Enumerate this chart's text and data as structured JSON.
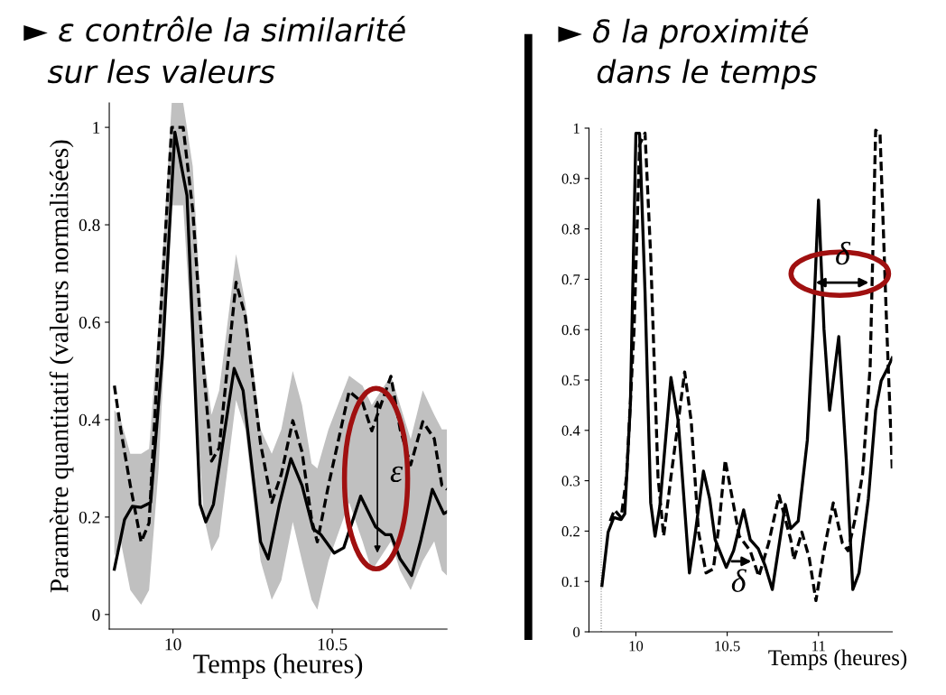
{
  "chart_data": [
    {
      "type": "line",
      "title": "► ε contrôle la similarité\nsur les valeurs",
      "xlabel": "Temps (heures)",
      "ylabel": "Paramètre quantitatif (valeurs normalisées)",
      "xlim": [
        9.8,
        10.86
      ],
      "ylim": [
        -0.03,
        1.05
      ],
      "xticks": [
        10,
        10.5
      ],
      "yticks": [
        0,
        0.2,
        0.4,
        0.6,
        0.8,
        1
      ],
      "series": [
        {
          "color": "#000000",
          "line_style": "solid",
          "x": [
            9.816,
            9.848,
            9.872,
            9.9,
            9.93,
            9.967,
            10.006,
            10.044,
            10.085,
            10.103,
            10.127,
            10.192,
            10.22,
            10.275,
            10.299,
            10.334,
            10.37,
            10.405,
            10.44,
            10.464,
            10.506,
            10.536,
            10.589,
            10.636,
            10.666,
            10.684,
            10.713,
            10.749,
            10.778,
            10.814,
            10.85,
            10.86
          ],
          "values": [
            0.093,
            0.195,
            0.222,
            0.22,
            0.23,
            0.535,
            0.99,
            0.86,
            0.226,
            0.19,
            0.226,
            0.505,
            0.46,
            0.149,
            0.114,
            0.226,
            0.32,
            0.265,
            0.176,
            0.164,
            0.126,
            0.137,
            0.243,
            0.18,
            0.164,
            0.164,
            0.114,
            0.08,
            0.153,
            0.257,
            0.207,
            0.211
          ]
        },
        {
          "color": "#000000",
          "line_style": "dashed",
          "x": [
            9.816,
            9.836,
            9.866,
            9.9,
            9.925,
            9.955,
            9.996,
            10.032,
            10.062,
            10.097,
            10.121,
            10.145,
            10.198,
            10.227,
            10.275,
            10.31,
            10.34,
            10.376,
            10.405,
            10.435,
            10.453,
            10.488,
            10.553,
            10.595,
            10.624,
            10.684,
            10.713,
            10.746,
            10.784,
            10.82,
            10.844,
            10.86
          ],
          "values": [
            0.47,
            0.38,
            0.265,
            0.149,
            0.188,
            0.55,
            1.0,
            1.0,
            0.83,
            0.497,
            0.315,
            0.342,
            0.682,
            0.612,
            0.35,
            0.23,
            0.288,
            0.398,
            0.334,
            0.195,
            0.149,
            0.265,
            0.458,
            0.435,
            0.377,
            0.489,
            0.38,
            0.307,
            0.396,
            0.361,
            0.265,
            0.257
          ],
          "lower": [
            0.12,
            0.15,
            0.05,
            0.02,
            0.05,
            0.3,
            0.84,
            0.84,
            0.53,
            0.2,
            0.13,
            0.16,
            0.44,
            0.38,
            0.11,
            0.03,
            0.07,
            0.19,
            0.11,
            0.03,
            0.01,
            0.11,
            0.23,
            0.15,
            0.09,
            0.15,
            0.09,
            0.05,
            0.11,
            0.15,
            0.09,
            0.08
          ],
          "upper": [
            0.42,
            0.4,
            0.33,
            0.33,
            0.34,
            0.6,
            1.05,
            1.05,
            0.92,
            0.53,
            0.41,
            0.46,
            0.74,
            0.64,
            0.38,
            0.33,
            0.38,
            0.5,
            0.43,
            0.31,
            0.3,
            0.38,
            0.49,
            0.47,
            0.43,
            0.49,
            0.43,
            0.36,
            0.46,
            0.41,
            0.38,
            0.38
          ]
        }
      ],
      "annotations": [
        "ε"
      ]
    },
    {
      "type": "line",
      "title": "► δ la proximité\ndans le temps",
      "xlabel": "Temps (heures)",
      "xlim": [
        9.743,
        11.404
      ],
      "ylim": [
        0,
        1
      ],
      "xticks": [
        10,
        10.5,
        11
      ],
      "yticks": [
        0,
        0.1,
        0.2,
        0.3,
        0.4,
        0.5,
        0.6,
        0.7,
        0.8,
        0.9,
        1
      ],
      "ref_lines": [
        {
          "axis": "x",
          "value": 9.81,
          "line_style": "dotted",
          "color": "#808080"
        }
      ],
      "series": [
        {
          "color": "#000000",
          "line_style": "solid",
          "x": [
            9.814,
            9.848,
            9.879,
            9.919,
            9.939,
            9.97,
            10.0,
            10.02,
            10.05,
            10.081,
            10.105,
            10.131,
            10.192,
            10.232,
            10.293,
            10.323,
            10.37,
            10.404,
            10.434,
            10.495,
            10.535,
            10.59,
            10.626,
            10.67,
            10.707,
            10.747,
            10.818,
            10.848,
            10.889,
            10.939,
            10.97,
            11.0,
            11.03,
            11.061,
            11.111,
            11.152,
            11.188,
            11.222,
            11.273,
            11.313,
            11.343,
            11.374,
            11.404
          ],
          "values": [
            0.092,
            0.198,
            0.227,
            0.223,
            0.234,
            0.454,
            0.99,
            0.99,
            0.674,
            0.256,
            0.19,
            0.249,
            0.505,
            0.418,
            0.117,
            0.19,
            0.319,
            0.264,
            0.183,
            0.128,
            0.161,
            0.242,
            0.183,
            0.165,
            0.132,
            0.084,
            0.253,
            0.205,
            0.22,
            0.381,
            0.601,
            0.857,
            0.601,
            0.44,
            0.586,
            0.344,
            0.084,
            0.117,
            0.264,
            0.44,
            0.498,
            0.52,
            0.544
          ]
        },
        {
          "color": "#000000",
          "line_style": "dashed",
          "x": [
            9.859,
            9.883,
            9.919,
            9.949,
            9.99,
            10.02,
            10.05,
            10.081,
            10.121,
            10.152,
            10.192,
            10.232,
            10.267,
            10.303,
            10.343,
            10.384,
            10.424,
            10.455,
            10.489,
            10.525,
            10.566,
            10.626,
            10.673,
            10.727,
            10.784,
            10.848,
            10.865,
            10.909,
            10.949,
            10.986,
            11.03,
            11.081,
            11.131,
            11.162,
            11.202,
            11.242,
            11.283,
            11.313,
            11.337,
            11.374,
            11.404
          ],
          "values": [
            0.22,
            0.242,
            0.227,
            0.308,
            0.6,
            0.967,
            0.99,
            0.747,
            0.308,
            0.19,
            0.308,
            0.418,
            0.516,
            0.418,
            0.198,
            0.117,
            0.125,
            0.212,
            0.341,
            0.271,
            0.19,
            0.161,
            0.11,
            0.176,
            0.271,
            0.183,
            0.143,
            0.198,
            0.147,
            0.062,
            0.161,
            0.256,
            0.176,
            0.161,
            0.227,
            0.315,
            0.527,
            0.996,
            0.989,
            0.601,
            0.322
          ]
        }
      ],
      "annotations": [
        "δ",
        "δ"
      ]
    }
  ]
}
